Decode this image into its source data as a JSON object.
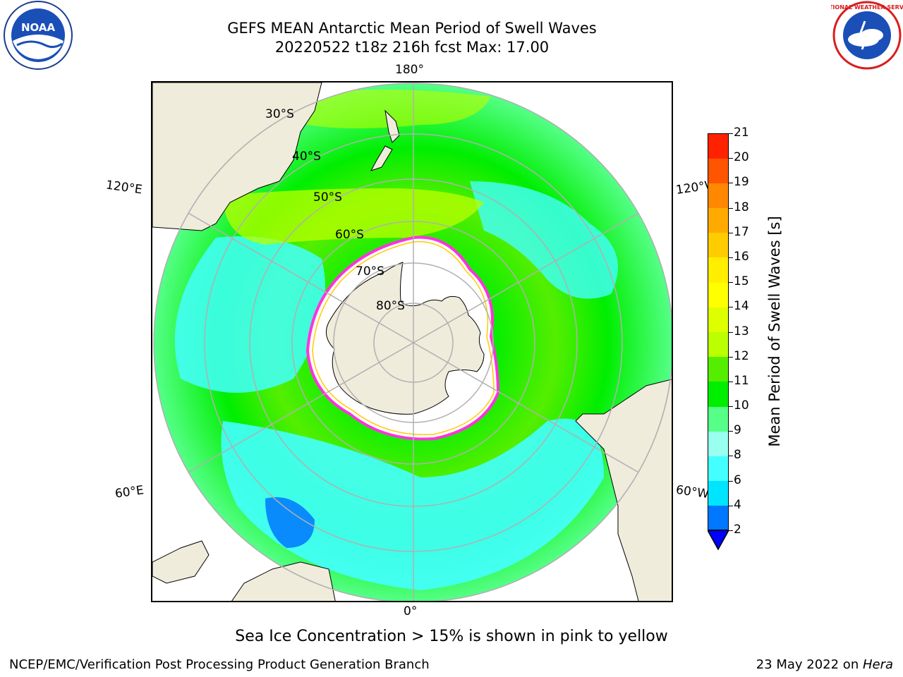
{
  "header": {
    "title_line1": "GEFS MEAN Antarctic Mean Period of Swell Waves",
    "title_line2": "20220522 t18z 216h fcst   Max: 17.00"
  },
  "logos": {
    "left": "noaa-logo",
    "right": "nws-logo",
    "noaa_text": "NOAA",
    "nws_text": "NATIONAL WEATHER SERVICE"
  },
  "map": {
    "projection": "south-polar-stereographic",
    "longitude_labels": {
      "top": "180°",
      "bottom": "0°",
      "upper_left": "120°E",
      "lower_left": "60°E",
      "upper_right": "120°W",
      "lower_right": "60°W"
    },
    "latitude_labels": [
      "30°S",
      "40°S",
      "50°S",
      "60°S",
      "70°S",
      "80°S"
    ],
    "colors": {
      "land": "#efecdc",
      "sea_ice": "#ffffff",
      "ice_edge_outer": "#ff33dd",
      "ice_edge_inner": "#ffcc00",
      "grid": "#b0b0b0"
    }
  },
  "colorbar": {
    "label": "Mean Period of Swell Waves [s]",
    "ticks": [
      "2",
      "4",
      "6",
      "8",
      "9",
      "10",
      "11",
      "12",
      "13",
      "14",
      "15",
      "16",
      "17",
      "18",
      "19",
      "20",
      "21"
    ],
    "colors": [
      "#0077ff",
      "#00e5ff",
      "#44ffff",
      "#99ffee",
      "#55ff88",
      "#00ee00",
      "#55ee00",
      "#bbff00",
      "#ddff00",
      "#ffff00",
      "#ffee00",
      "#ffcc00",
      "#ffaa00",
      "#ff8800",
      "#ff5500",
      "#ff2200"
    ],
    "extend_color": "#0000ff"
  },
  "caption": "Sea Ice Concentration > 15% is shown in pink to yellow",
  "footer": {
    "left": "NCEP/EMC/Verification Post Processing Product Generation Branch",
    "right_date": "23 May 2022 on ",
    "right_host": "Hera"
  }
}
